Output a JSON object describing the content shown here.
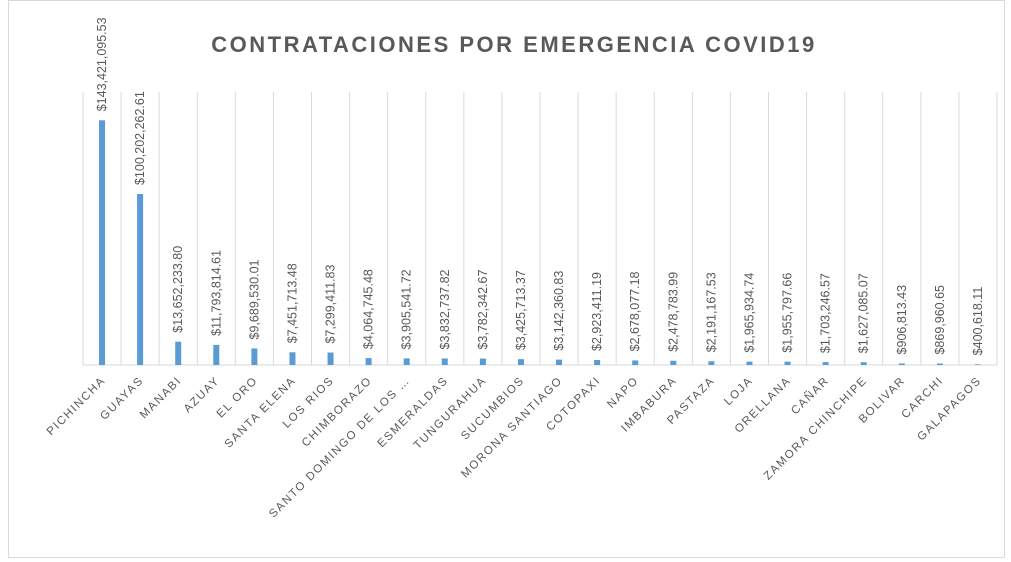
{
  "chart_data": {
    "type": "bar",
    "title": "CONTRATACIONES POR EMERGENCIA COVID19",
    "categories": [
      "PICHINCHA",
      "GUAYAS",
      "MANABI",
      "AZUAY",
      "EL ORO",
      "SANTA ELENA",
      "LOS RIOS",
      "CHIMBORAZO",
      "SANTO DOMINGO DE LOS …",
      "ESMERALDAS",
      "TUNGURAHUA",
      "SUCUMBIOS",
      "MORONA SANTIAGO",
      "COTOPAXI",
      "NAPO",
      "IMBABURA",
      "PASTAZA",
      "LOJA",
      "ORELLANA",
      "CAÑAR",
      "ZAMORA CHINCHIPE",
      "BOLIVAR",
      "CARCHI",
      "GALAPAGOS"
    ],
    "values": [
      143421095.53,
      100202262.61,
      13652233.8,
      11793814.61,
      9689530.01,
      7451713.48,
      7299411.83,
      4064745.48,
      3905541.72,
      3832737.82,
      3782342.67,
      3425713.37,
      3142360.83,
      2923411.19,
      2678077.18,
      2478783.99,
      2191167.53,
      1965934.74,
      1955797.66,
      1703246.57,
      1627085.07,
      906813.43,
      869960.65,
      400618.11
    ],
    "value_labels": [
      "$143,421,095.53",
      "$100,202,262.61",
      "$13,652,233.80",
      "$11,793,814.61",
      "$9,689,530.01",
      "$7,451,713.48",
      "$7,299,411.83",
      "$4,064,745.48",
      "$3,905,541.72",
      "$3,832,737.82",
      "$3,782,342.67",
      "$3,425,713.37",
      "$3,142,360.83",
      "$2,923,411.19",
      "$2,678,077.18",
      "$2,478,783.99",
      "$2,191,167.53",
      "$1,965,934.74",
      "$1,955,797.66",
      "$1,703,246.57",
      "$1,627,085.07",
      "$906,813.43",
      "$869,960.65",
      "$400,618.11"
    ],
    "color": "#5b9bd5",
    "ylim": [
      0,
      160000000
    ],
    "grid": true
  }
}
